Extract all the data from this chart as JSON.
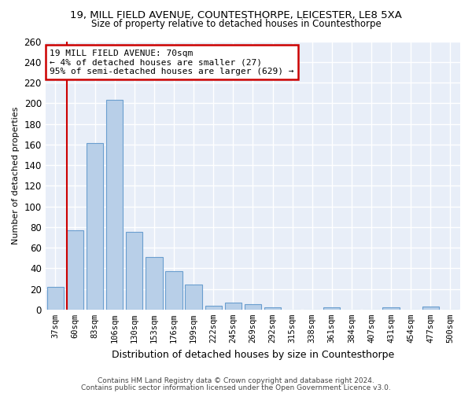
{
  "title1": "19, MILL FIELD AVENUE, COUNTESTHORPE, LEICESTER, LE8 5XA",
  "title2": "Size of property relative to detached houses in Countesthorpe",
  "xlabel": "Distribution of detached houses by size in Countesthorpe",
  "ylabel": "Number of detached properties",
  "footer1": "Contains HM Land Registry data © Crown copyright and database right 2024.",
  "footer2": "Contains public sector information licensed under the Open Government Licence v3.0.",
  "bar_color": "#b8cfe8",
  "bar_edge_color": "#6a9ecf",
  "bg_color": "#e8eef8",
  "grid_color": "#d0d8e8",
  "annotation_line1": "19 MILL FIELD AVENUE: 70sqm",
  "annotation_line2": "← 4% of detached houses are smaller (27)",
  "annotation_line3": "95% of semi-detached houses are larger (629) →",
  "annotation_box_color": "white",
  "annotation_box_edge_color": "#cc0000",
  "vline_color": "#cc0000",
  "categories": [
    "37sqm",
    "60sqm",
    "83sqm",
    "106sqm",
    "130sqm",
    "153sqm",
    "176sqm",
    "199sqm",
    "222sqm",
    "245sqm",
    "269sqm",
    "292sqm",
    "315sqm",
    "338sqm",
    "361sqm",
    "384sqm",
    "407sqm",
    "431sqm",
    "454sqm",
    "477sqm",
    "500sqm"
  ],
  "values": [
    22,
    77,
    161,
    203,
    75,
    51,
    37,
    24,
    4,
    7,
    5,
    2,
    0,
    0,
    2,
    0,
    0,
    2,
    0,
    3,
    0
  ],
  "ylim": [
    0,
    260
  ],
  "yticks": [
    0,
    20,
    40,
    60,
    80,
    100,
    120,
    140,
    160,
    180,
    200,
    220,
    240,
    260
  ],
  "vline_bar_index": 1
}
